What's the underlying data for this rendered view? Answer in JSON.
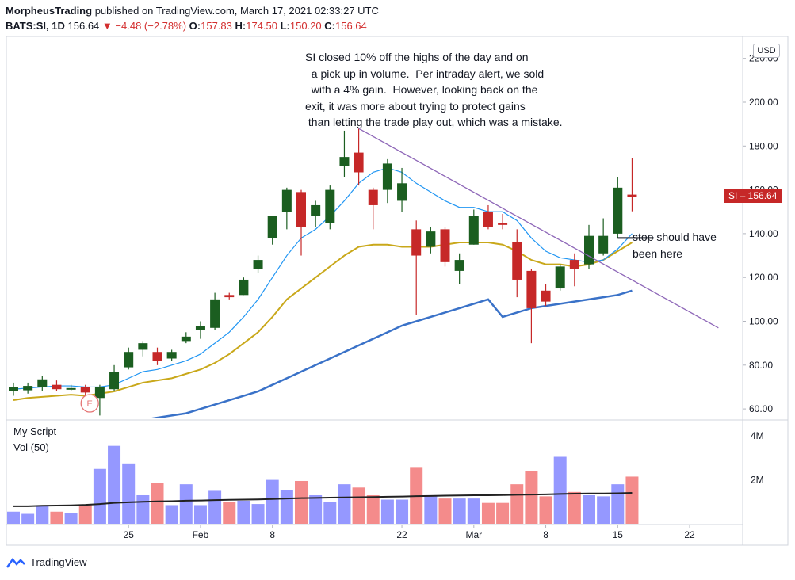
{
  "header": {
    "publisher": "MorpheusTrading",
    "published_text": "published on TradingView.com, March 17, 2021 02:33:27 UTC",
    "symbol": "BATS:SI, 1D",
    "last": "156.64",
    "change": "−4.48 (−2.78%)",
    "o_label": "O:",
    "o": "157.83",
    "h_label": "H:",
    "h": "174.50",
    "l_label": "L:",
    "l": "150.20",
    "c_label": "C:",
    "c": "156.64"
  },
  "currency_button": "USD",
  "price_tag": "SI – 156.64",
  "annotation_main": "SI closed 10% off the highs of the day and on\n  a pick up in volume.  Per intraday alert, we sold\n  with a 4% gain.  However, looking back on the\nexit, it was more about trying to protect gains\n than letting the trade play out, which was a mistake.",
  "annotation_stop": "stop should have\nbeen here",
  "pane_title": "My Script",
  "pane_vol": "Vol (50)",
  "earnings_marker": "E",
  "footer_brand": "TradingView",
  "colors": {
    "up": "#1b5e20",
    "down": "#c62828",
    "vol_up": "#9598ff",
    "vol_down": "#f48b8b",
    "ma_fast": "#2196f3",
    "ma_mid": "#c9a81a",
    "ma_slow": "#3a72c8",
    "trend": "#8e67b8"
  },
  "chart_data": {
    "type": "candlestick",
    "price_axis": {
      "ticks": [
        60,
        80,
        100,
        120,
        140,
        160,
        180,
        200,
        220
      ],
      "tick_labels": [
        "60.00",
        "80.00",
        "100.00",
        "120.00",
        "140.00",
        "160.00",
        "180.00",
        "200.00",
        "220.00"
      ],
      "range": [
        54,
        225
      ]
    },
    "volume_axis": {
      "ticks": [
        2,
        4
      ],
      "tick_labels": [
        "2M",
        "4M"
      ],
      "range": [
        0,
        4.6
      ]
    },
    "x_ticks": [
      {
        "label": "25",
        "index": 8
      },
      {
        "label": "Feb",
        "index": 13
      },
      {
        "label": "8",
        "index": 18
      },
      {
        "label": "22",
        "index": 27
      },
      {
        "label": "Mar",
        "index": 32
      },
      {
        "label": "8",
        "index": 37
      },
      {
        "label": "15",
        "index": 42
      },
      {
        "label": "22",
        "index": 47
      }
    ],
    "candles": [
      {
        "o": 68,
        "h": 72,
        "l": 66,
        "c": 70
      },
      {
        "o": 68.5,
        "h": 72,
        "l": 67,
        "c": 70.5
      },
      {
        "o": 70,
        "h": 75,
        "l": 68,
        "c": 73.5
      },
      {
        "o": 71,
        "h": 73,
        "l": 68,
        "c": 69
      },
      {
        "o": 69,
        "h": 71,
        "l": 68,
        "c": 69.5
      },
      {
        "o": 70,
        "h": 71,
        "l": 66,
        "c": 67.5
      },
      {
        "o": 65,
        "h": 71,
        "l": 57,
        "c": 70
      },
      {
        "o": 69,
        "h": 80,
        "l": 68,
        "c": 77
      },
      {
        "o": 79,
        "h": 88,
        "l": 78,
        "c": 86
      },
      {
        "o": 87,
        "h": 91,
        "l": 84,
        "c": 90
      },
      {
        "o": 86,
        "h": 88,
        "l": 80,
        "c": 82
      },
      {
        "o": 83,
        "h": 87,
        "l": 82,
        "c": 86
      },
      {
        "o": 91,
        "h": 95,
        "l": 90,
        "c": 93
      },
      {
        "o": 96,
        "h": 100,
        "l": 92,
        "c": 98
      },
      {
        "o": 97,
        "h": 113,
        "l": 96,
        "c": 110
      },
      {
        "o": 112,
        "h": 113,
        "l": 110,
        "c": 111
      },
      {
        "o": 112,
        "h": 120,
        "l": 112,
        "c": 119
      },
      {
        "o": 124,
        "h": 130,
        "l": 122,
        "c": 128
      },
      {
        "o": 138,
        "h": 148,
        "l": 135,
        "c": 148
      },
      {
        "o": 150,
        "h": 161,
        "l": 142,
        "c": 160
      },
      {
        "o": 159,
        "h": 160,
        "l": 130,
        "c": 143
      },
      {
        "o": 148,
        "h": 155,
        "l": 143,
        "c": 153
      },
      {
        "o": 145,
        "h": 162,
        "l": 142,
        "c": 160
      },
      {
        "o": 171,
        "h": 187,
        "l": 166,
        "c": 175
      },
      {
        "o": 177,
        "h": 188,
        "l": 162,
        "c": 168
      },
      {
        "o": 160,
        "h": 161,
        "l": 142,
        "c": 153
      },
      {
        "o": 160,
        "h": 174,
        "l": 154,
        "c": 172
      },
      {
        "o": 155,
        "h": 170,
        "l": 150,
        "c": 163
      },
      {
        "o": 142,
        "h": 146,
        "l": 103,
        "c": 130
      },
      {
        "o": 134,
        "h": 143,
        "l": 131,
        "c": 141
      },
      {
        "o": 142,
        "h": 143,
        "l": 125,
        "c": 127
      },
      {
        "o": 123,
        "h": 131,
        "l": 117,
        "c": 128
      },
      {
        "o": 135,
        "h": 151,
        "l": 135,
        "c": 148
      },
      {
        "o": 150,
        "h": 153,
        "l": 142,
        "c": 143
      },
      {
        "o": 145,
        "h": 149,
        "l": 142,
        "c": 144
      },
      {
        "o": 136,
        "h": 142,
        "l": 111,
        "c": 119
      },
      {
        "o": 123,
        "h": 124,
        "l": 90,
        "c": 106
      },
      {
        "o": 114,
        "h": 117,
        "l": 107,
        "c": 109
      },
      {
        "o": 115,
        "h": 126,
        "l": 114,
        "c": 125
      },
      {
        "o": 128,
        "h": 131,
        "l": 116,
        "c": 124
      },
      {
        "o": 126,
        "h": 144,
        "l": 124,
        "c": 139
      },
      {
        "o": 131,
        "h": 147,
        "l": 130,
        "c": 139
      },
      {
        "o": 140,
        "h": 166,
        "l": 138,
        "c": 161
      },
      {
        "o": 157.83,
        "h": 174.5,
        "l": 150.2,
        "c": 156.64
      }
    ],
    "volume_millions": [
      0.55,
      0.45,
      0.85,
      0.55,
      0.5,
      0.85,
      2.5,
      3.55,
      2.75,
      1.3,
      1.85,
      0.85,
      1.8,
      0.85,
      1.5,
      1.0,
      1.05,
      0.9,
      2.0,
      1.55,
      1.95,
      1.3,
      1.0,
      1.8,
      1.65,
      1.3,
      1.1,
      1.1,
      2.55,
      1.3,
      1.15,
      1.15,
      1.15,
      0.95,
      0.95,
      1.8,
      2.4,
      1.25,
      3.05,
      1.45,
      1.3,
      1.25,
      1.8,
      2.15
    ],
    "volume_ma": [
      0.8,
      0.8,
      0.82,
      0.83,
      0.84,
      0.86,
      0.9,
      0.95,
      0.98,
      1.0,
      1.02,
      1.03,
      1.05,
      1.06,
      1.08,
      1.09,
      1.1,
      1.11,
      1.13,
      1.15,
      1.17,
      1.18,
      1.19,
      1.2,
      1.21,
      1.22,
      1.23,
      1.24,
      1.26,
      1.27,
      1.28,
      1.29,
      1.3,
      1.3,
      1.31,
      1.32,
      1.33,
      1.34,
      1.36,
      1.37,
      1.38,
      1.38,
      1.39,
      1.41
    ],
    "ma_fast": [
      69,
      69.5,
      70,
      70.5,
      70.5,
      70,
      70,
      71,
      74,
      77,
      78,
      80,
      82,
      85,
      90,
      95,
      102,
      110,
      120,
      130,
      138,
      142,
      148,
      155,
      163,
      168,
      170,
      168,
      163,
      159,
      155,
      152,
      152,
      150,
      150,
      146,
      138,
      132,
      129,
      128,
      127,
      128,
      133,
      140
    ],
    "ma_mid": [
      64,
      65,
      65.5,
      66,
      66.5,
      66,
      67,
      68,
      70,
      72,
      73,
      74,
      76,
      78,
      81,
      85,
      90,
      95,
      102,
      110,
      115,
      120,
      125,
      130,
      134,
      135,
      135,
      134,
      134,
      134,
      135,
      136,
      136,
      136,
      135,
      132,
      128,
      126,
      126,
      125,
      126,
      128,
      132,
      136
    ],
    "ma_slow": [
      46,
      47,
      48,
      49,
      50,
      51,
      52,
      53,
      54,
      55,
      56,
      57,
      58,
      60,
      62,
      64,
      66,
      68,
      71,
      74,
      77,
      80,
      83,
      86,
      89,
      92,
      95,
      98,
      100,
      102,
      104,
      106,
      108,
      110,
      102,
      104,
      106,
      107,
      108,
      109,
      110,
      111,
      112,
      114
    ],
    "trendline": {
      "from": {
        "index": 24,
        "price": 188
      },
      "to": {
        "index": 49,
        "price": 97
      }
    },
    "stop_level": {
      "from_index": 42,
      "to_index": 44.5,
      "price": 138
    }
  }
}
